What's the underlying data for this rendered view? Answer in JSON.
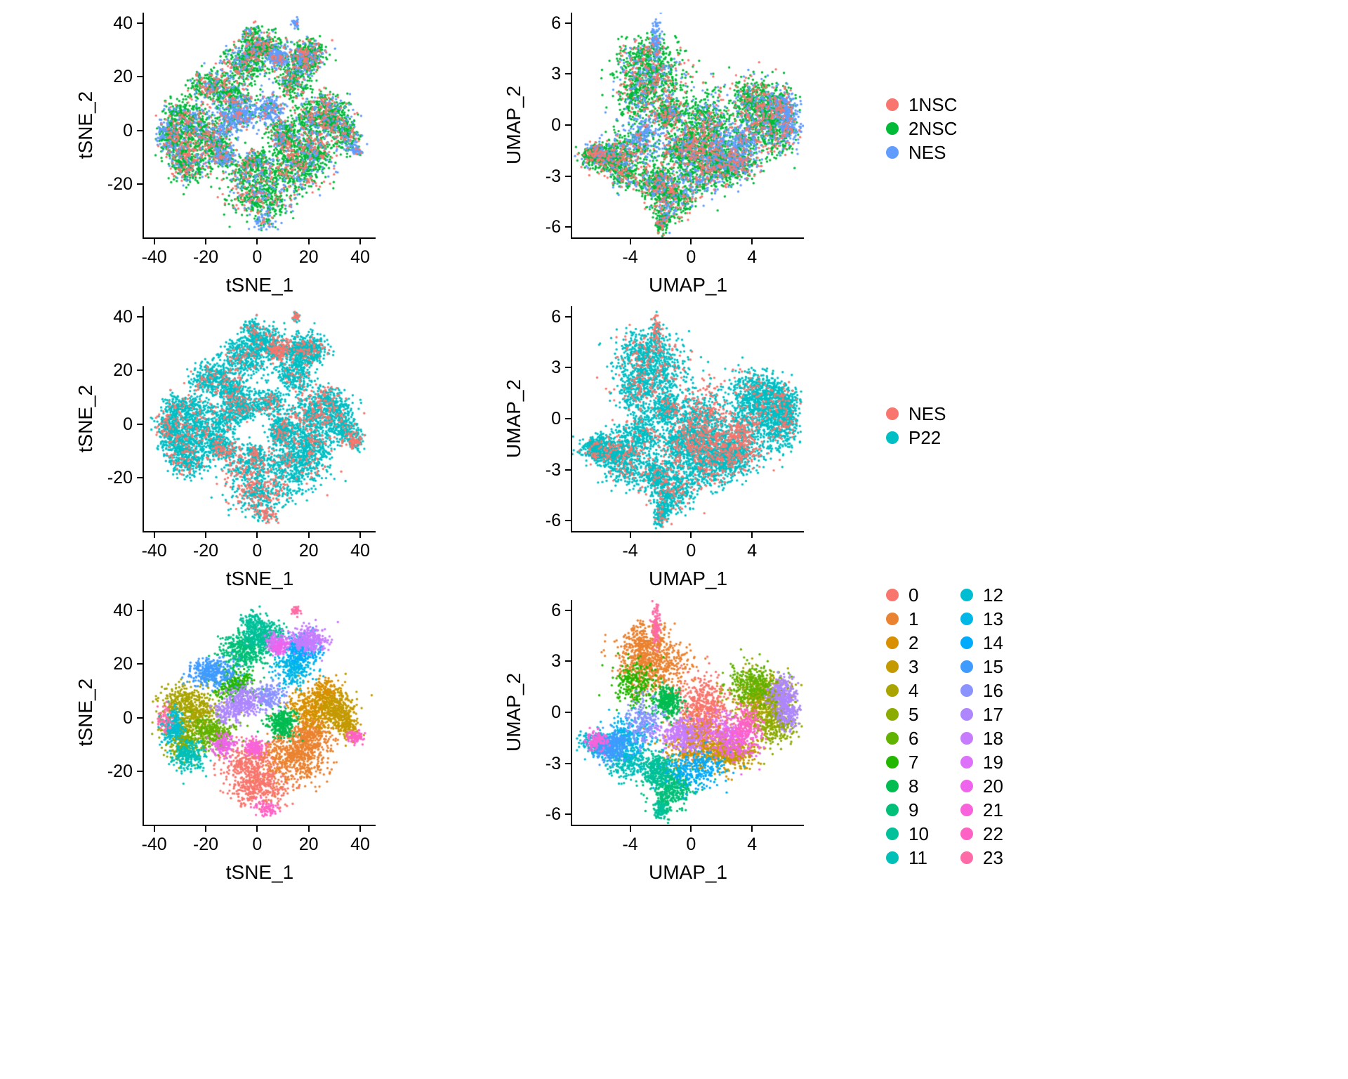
{
  "page": {
    "background": "#ffffff"
  },
  "chart_data": {
    "type": "scatter",
    "description": "Six single-cell embedding scatter plots (tSNE and UMAP) colored by sample groups and by cluster identity",
    "panels": [
      {
        "id": "tsne-by-sample3",
        "embedding": "tsne",
        "coloring": "groups3",
        "xlabel": "tSNE_1",
        "ylabel": "tSNE_2",
        "xlim": [
          -44,
          46
        ],
        "ylim": [
          -40,
          44
        ],
        "xticks": [
          -40,
          -20,
          0,
          20,
          40
        ],
        "yticks": [
          -20,
          0,
          20,
          40
        ]
      },
      {
        "id": "umap-by-sample3",
        "embedding": "umap",
        "coloring": "groups3",
        "xlabel": "UMAP_1",
        "ylabel": "UMAP_2",
        "xlim": [
          -7.8,
          7.4
        ],
        "ylim": [
          -6.6,
          6.6
        ],
        "xticks": [
          -4,
          0,
          4
        ],
        "yticks": [
          -6,
          -3,
          0,
          3,
          6
        ]
      },
      {
        "id": "tsne-by-sample2",
        "embedding": "tsne",
        "coloring": "groups2",
        "xlabel": "tSNE_1",
        "ylabel": "tSNE_2",
        "xlim": [
          -44,
          46
        ],
        "ylim": [
          -40,
          44
        ],
        "xticks": [
          -40,
          -20,
          0,
          20,
          40
        ],
        "yticks": [
          -20,
          0,
          20,
          40
        ]
      },
      {
        "id": "umap-by-sample2",
        "embedding": "umap",
        "coloring": "groups2",
        "xlabel": "UMAP_1",
        "ylabel": "UMAP_2",
        "xlim": [
          -7.8,
          7.4
        ],
        "ylim": [
          -6.6,
          6.6
        ],
        "xticks": [
          -4,
          0,
          4
        ],
        "yticks": [
          -6,
          -3,
          0,
          3,
          6
        ]
      },
      {
        "id": "tsne-by-cluster",
        "embedding": "tsne",
        "coloring": "clusters",
        "xlabel": "tSNE_1",
        "ylabel": "tSNE_2",
        "xlim": [
          -44,
          46
        ],
        "ylim": [
          -40,
          44
        ],
        "xticks": [
          -40,
          -20,
          0,
          20,
          40
        ],
        "yticks": [
          -20,
          0,
          20,
          40
        ]
      },
      {
        "id": "umap-by-cluster",
        "embedding": "umap",
        "coloring": "clusters",
        "xlabel": "UMAP_1",
        "ylabel": "UMAP_2",
        "xlim": [
          -7.8,
          7.4
        ],
        "ylim": [
          -6.6,
          6.6
        ],
        "xticks": [
          -4,
          0,
          4
        ],
        "yticks": [
          -6,
          -3,
          0,
          3,
          6
        ]
      }
    ],
    "colorings": {
      "groups3": {
        "mode": "groups",
        "legend": [
          {
            "label": "1NSC",
            "color": "#F8766D"
          },
          {
            "label": "2NSC",
            "color": "#00BA38"
          },
          {
            "label": "NES",
            "color": "#619CFF"
          }
        ],
        "default": [
          0.16,
          0.68,
          0.16
        ],
        "overrides": {
          "14": [
            0.1,
            0.55,
            0.35
          ],
          "16": [
            0.08,
            0.22,
            0.7
          ],
          "17": [
            0.08,
            0.27,
            0.65
          ],
          "19": [
            0.08,
            0.27,
            0.65
          ],
          "20": [
            0.1,
            0.3,
            0.6
          ],
          "22": [
            0.1,
            0.3,
            0.6
          ],
          "23": [
            0.05,
            0.15,
            0.8
          ]
        }
      },
      "groups2": {
        "mode": "groups",
        "legend": [
          {
            "label": "NES",
            "color": "#F8766D"
          },
          {
            "label": "P22",
            "color": "#00BFC4"
          }
        ],
        "default": [
          0.12,
          0.88
        ],
        "overrides": {
          "0": [
            0.3,
            0.7
          ],
          "2": [
            0.25,
            0.75
          ],
          "19": [
            0.55,
            0.45
          ],
          "20": [
            0.45,
            0.55
          ],
          "22": [
            0.55,
            0.45
          ],
          "23": [
            0.45,
            0.55
          ]
        }
      },
      "clusters": {
        "mode": "clusters",
        "legend": [
          {
            "label": "0",
            "color": "#F8766D"
          },
          {
            "label": "1",
            "color": "#EA8331"
          },
          {
            "label": "2",
            "color": "#D89000"
          },
          {
            "label": "3",
            "color": "#C49A00"
          },
          {
            "label": "4",
            "color": "#A9A400"
          },
          {
            "label": "5",
            "color": "#8CAB00"
          },
          {
            "label": "6",
            "color": "#62B200"
          },
          {
            "label": "7",
            "color": "#24B700"
          },
          {
            "label": "8",
            "color": "#00BC51"
          },
          {
            "label": "9",
            "color": "#00C078"
          },
          {
            "label": "10",
            "color": "#00C19A"
          },
          {
            "label": "11",
            "color": "#00C0B8"
          },
          {
            "label": "12",
            "color": "#00BDD2"
          },
          {
            "label": "13",
            "color": "#00B7E8"
          },
          {
            "label": "14",
            "color": "#00ABFD"
          },
          {
            "label": "15",
            "color": "#3F9BFF"
          },
          {
            "label": "16",
            "color": "#8B93FF"
          },
          {
            "label": "17",
            "color": "#AE87FF"
          },
          {
            "label": "18",
            "color": "#C77CFF"
          },
          {
            "label": "19",
            "color": "#DD71F9"
          },
          {
            "label": "20",
            "color": "#EE64EC"
          },
          {
            "label": "21",
            "color": "#F863DB"
          },
          {
            "label": "22",
            "color": "#FF62C5"
          },
          {
            "label": "23",
            "color": "#FF6BA6"
          }
        ]
      }
    },
    "legends": [
      {
        "coloring": "groups3"
      },
      {
        "coloring": "groups2"
      },
      {
        "coloring": "clusters",
        "rows": 12
      }
    ],
    "embeddings": {
      "tsne": {
        "clusters": [
          {
            "blobs": [
              [
                1,
                -26,
                6,
                3.5,
                380
              ],
              [
                -3,
                -16,
                5,
                3.5,
                300
              ]
            ]
          },
          {
            "blobs": [
              [
                15,
                -14,
                6,
                5,
                550
              ],
              [
                21,
                -7,
                4,
                3.5,
                300
              ]
            ]
          },
          {
            "blobs": [
              [
                22,
                4,
                4.5,
                4,
                380
              ],
              [
                27,
                10,
                3,
                2.5,
                120
              ]
            ]
          },
          {
            "blobs": [
              [
                31,
                3,
                3.5,
                3.5,
                280
              ],
              [
                35,
                -3,
                2.5,
                2.5,
                140
              ]
            ]
          },
          {
            "blobs": [
              [
                -25,
                2,
                5.5,
                4.5,
                480
              ],
              [
                -31,
                7,
                3,
                2.5,
                100
              ]
            ]
          },
          {
            "blobs": [
              [
                -29,
                -8,
                3.5,
                3.5,
                260
              ]
            ]
          },
          {
            "blobs": [
              [
                -17,
                -6,
                4,
                3.5,
                300
              ]
            ]
          },
          {
            "blobs": [
              [
                -9,
                12,
                3.5,
                2.8,
                240
              ]
            ]
          },
          {
            "blobs": [
              [
                10,
                -2,
                2.8,
                2.8,
                300
              ]
            ]
          },
          {
            "blobs": [
              [
                -5,
                25,
                4.5,
                3.5,
                380
              ]
            ]
          },
          {
            "blobs": [
              [
                2,
                31,
                4,
                2.8,
                330
              ],
              [
                -2,
                36,
                2,
                1.8,
                80
              ]
            ]
          },
          {
            "blobs": [
              [
                -27,
                -14,
                3.5,
                2.8,
                240
              ]
            ]
          },
          {
            "blobs": [
              [
                -33,
                -3,
                2.2,
                3,
                200
              ]
            ]
          },
          {
            "blobs": [
              [
                14,
                19,
                3.5,
                3.5,
                280
              ]
            ]
          },
          {
            "blobs": [
              [
                18,
                26,
                3.5,
                2.8,
                260
              ]
            ]
          },
          {
            "blobs": [
              [
                -18,
                17,
                4.5,
                2.8,
                320
              ]
            ]
          },
          {
            "blobs": [
              [
                5,
                8,
                2.8,
                2.5,
                190
              ]
            ]
          },
          {
            "blobs": [
              [
                -6,
                6,
                3.5,
                2.8,
                280
              ],
              [
                -12,
                2,
                2.5,
                2,
                100
              ]
            ]
          },
          {
            "blobs": [
              [
                20,
                29,
                3.5,
                2.5,
                280
              ]
            ]
          },
          {
            "blobs": [
              [
                8,
                28,
                2.2,
                1.8,
                140
              ]
            ]
          },
          {
            "blobs": [
              [
                -13,
                -10,
                2.5,
                2,
                130
              ],
              [
                9,
                26,
                1.8,
                1.5,
                70
              ]
            ]
          },
          {
            "blobs": [
              [
                -1,
                -11,
                2,
                1.8,
                110
              ]
            ]
          },
          {
            "blobs": [
              [
                38,
                -7,
                1.5,
                1.2,
                90
              ],
              [
                3,
                -34,
                2.5,
                1.5,
                70
              ]
            ]
          },
          {
            "blobs": [
              [
                15,
                40,
                0.8,
                0.8,
                40
              ],
              [
                -36,
                -1,
                1.5,
                2.5,
                60
              ]
            ]
          }
        ]
      },
      "umap": {
        "clusters": [
          {
            "blobs": [
              [
                0.8,
                -0.2,
                0.9,
                1.1,
                680
              ]
            ]
          },
          {
            "blobs": [
              [
                -2.6,
                3.0,
                1.1,
                0.9,
                700
              ],
              [
                -3.2,
                4.2,
                0.7,
                0.5,
                150
              ]
            ]
          },
          {
            "blobs": [
              [
                0.3,
                -1.9,
                1.0,
                0.7,
                380
              ],
              [
                1.5,
                -2.4,
                0.7,
                0.5,
                120
              ]
            ]
          },
          {
            "blobs": [
              [
                2.6,
                -2.3,
                0.8,
                0.5,
                420
              ]
            ]
          },
          {
            "blobs": [
              [
                4.6,
                0.6,
                0.9,
                0.8,
                480
              ],
              [
                5.6,
                1.2,
                0.5,
                0.5,
                100
              ]
            ]
          },
          {
            "blobs": [
              [
                5.6,
                -0.6,
                0.7,
                0.7,
                260
              ]
            ]
          },
          {
            "blobs": [
              [
                4.0,
                1.6,
                0.8,
                0.6,
                300
              ]
            ]
          },
          {
            "blobs": [
              [
                -3.6,
                1.6,
                0.7,
                0.7,
                240
              ]
            ]
          },
          {
            "blobs": [
              [
                -1.5,
                0.6,
                0.45,
                0.45,
                300
              ]
            ]
          },
          {
            "blobs": [
              [
                -1.2,
                -4.4,
                0.7,
                0.5,
                300
              ],
              [
                -1.8,
                -5.4,
                0.3,
                0.4,
                80
              ]
            ]
          },
          {
            "blobs": [
              [
                -2.2,
                -3.4,
                0.6,
                0.5,
                330
              ],
              [
                -2.0,
                -5.8,
                0.2,
                0.3,
                80
              ]
            ]
          },
          {
            "blobs": [
              [
                -4.3,
                -2.9,
                0.7,
                0.5,
                240
              ]
            ]
          },
          {
            "blobs": [
              [
                -6.3,
                -1.8,
                0.5,
                0.35,
                200
              ]
            ]
          },
          {
            "blobs": [
              [
                -4.0,
                -1.4,
                0.8,
                0.6,
                280
              ]
            ]
          },
          {
            "blobs": [
              [
                0.4,
                -3.3,
                1.0,
                0.55,
                260
              ]
            ]
          },
          {
            "blobs": [
              [
                -5.3,
                -2.0,
                0.6,
                0.45,
                320
              ]
            ]
          },
          {
            "blobs": [
              [
                -3.0,
                -0.6,
                0.6,
                0.6,
                190
              ]
            ]
          },
          {
            "blobs": [
              [
                6.1,
                0.9,
                0.45,
                0.6,
                280
              ],
              [
                6.4,
                -0.2,
                0.3,
                0.4,
                100
              ]
            ]
          },
          {
            "blobs": [
              [
                -0.6,
                -1.4,
                0.8,
                0.5,
                280
              ]
            ]
          },
          {
            "blobs": [
              [
                2.0,
                -1.0,
                0.7,
                0.5,
                140
              ]
            ]
          },
          {
            "blobs": [
              [
                3.1,
                -1.8,
                0.7,
                0.6,
                200
              ]
            ]
          },
          {
            "blobs": [
              [
                -6.2,
                -1.6,
                0.35,
                0.3,
                110
              ]
            ]
          },
          {
            "blobs": [
              [
                3.6,
                -0.7,
                0.5,
                0.5,
                160
              ]
            ]
          },
          {
            "blobs": [
              [
                -2.3,
                5.1,
                0.15,
                0.55,
                100
              ]
            ]
          }
        ]
      }
    }
  }
}
